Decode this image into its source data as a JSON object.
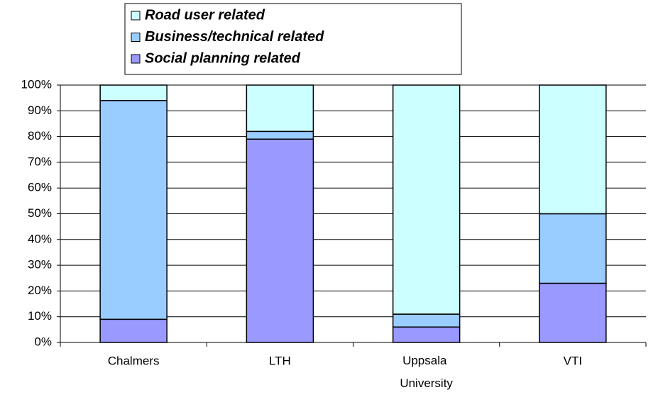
{
  "chart_data": {
    "type": "stacked_bar",
    "categories": [
      "Chalmers",
      "LTH",
      "Uppsala University",
      "VTI"
    ],
    "series": [
      {
        "name": "Social planning related",
        "color": "#9999ff",
        "values": [
          9,
          79,
          6,
          23
        ]
      },
      {
        "name": "Business/technical related",
        "color": "#99ccff",
        "values": [
          85,
          3,
          5,
          27
        ]
      },
      {
        "name": "Road user related",
        "color": "#ccffff",
        "values": [
          6,
          18,
          89,
          50
        ]
      }
    ],
    "ylim": [
      0,
      100
    ],
    "yticks": [
      {
        "value": 0,
        "label": "0%"
      },
      {
        "value": 10,
        "label": "10%"
      },
      {
        "value": 20,
        "label": "20%"
      },
      {
        "value": 30,
        "label": "30%"
      },
      {
        "value": 40,
        "label": "40%"
      },
      {
        "value": 50,
        "label": "50%"
      },
      {
        "value": 60,
        "label": "60%"
      },
      {
        "value": 70,
        "label": "70%"
      },
      {
        "value": 80,
        "label": "80%"
      },
      {
        "value": 90,
        "label": "90%"
      },
      {
        "value": 100,
        "label": "100%"
      }
    ],
    "grid": true,
    "legend": "top"
  }
}
